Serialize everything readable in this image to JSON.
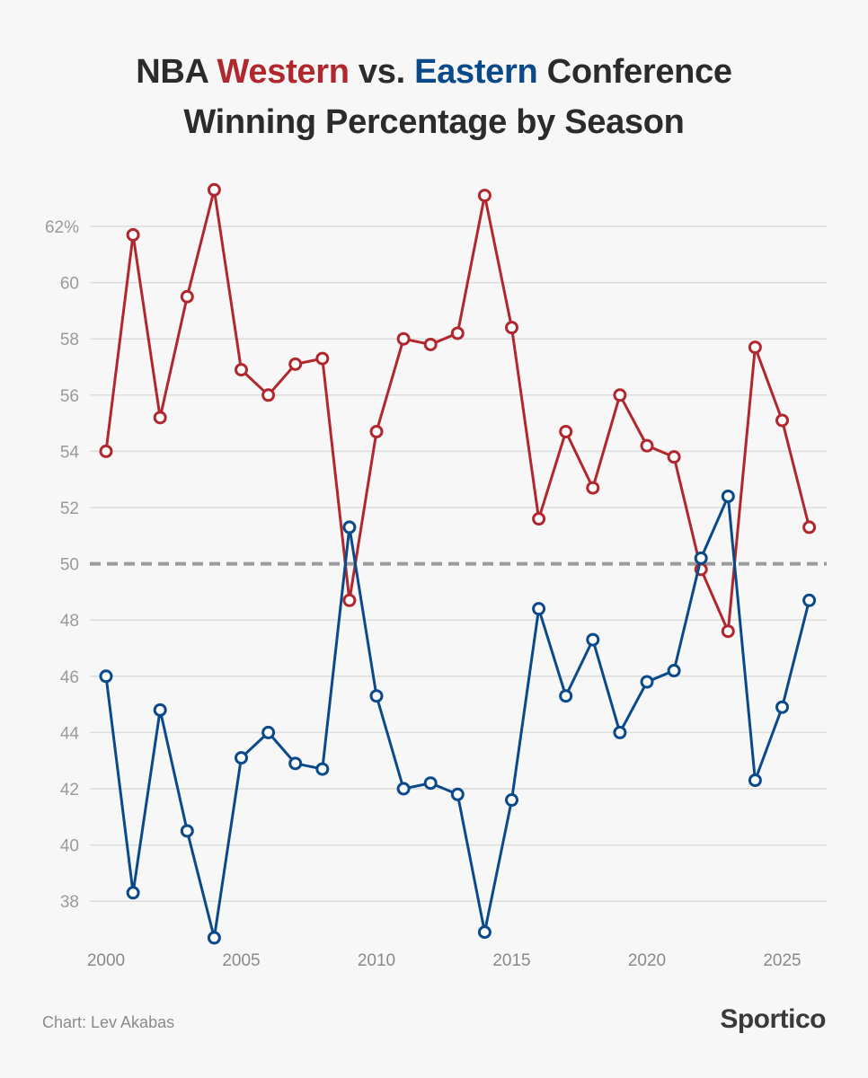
{
  "chart_data": {
    "type": "line",
    "title_parts": [
      {
        "text": "NBA ",
        "role": "plain"
      },
      {
        "text": "Western",
        "role": "west"
      },
      {
        "text": " vs. ",
        "role": "plain"
      },
      {
        "text": "Eastern",
        "role": "east"
      },
      {
        "text": " Conference",
        "role": "plain"
      }
    ],
    "title_line2": "Winning Percentage by Season",
    "title": "NBA Western vs. Eastern Conference Winning Percentage by Season",
    "xlabel": "",
    "ylabel": "",
    "x": [
      2000,
      2001,
      2002,
      2003,
      2004,
      2005,
      2006,
      2007,
      2008,
      2009,
      2010,
      2011,
      2012,
      2013,
      2014,
      2015,
      2016,
      2017,
      2018,
      2019,
      2020,
      2021,
      2022,
      2023,
      2024,
      2025,
      2026
    ],
    "series": [
      {
        "name": "Western",
        "color": "#b0282e",
        "values": [
          54.0,
          61.7,
          55.2,
          59.5,
          63.3,
          56.9,
          56.0,
          57.1,
          57.3,
          48.7,
          54.7,
          58.0,
          57.8,
          58.2,
          63.1,
          58.4,
          51.6,
          54.7,
          52.7,
          56.0,
          54.2,
          53.8,
          49.8,
          47.6,
          57.7,
          55.1,
          51.3
        ]
      },
      {
        "name": "Eastern",
        "color": "#0b4a8a",
        "values": [
          46.0,
          38.3,
          44.8,
          40.5,
          36.7,
          43.1,
          44.0,
          42.9,
          42.7,
          51.3,
          45.3,
          42.0,
          42.2,
          41.8,
          36.9,
          41.6,
          48.4,
          45.3,
          47.3,
          44.0,
          45.8,
          46.2,
          50.2,
          52.4,
          42.3,
          44.9,
          48.7
        ]
      }
    ],
    "xticks": [
      2000,
      2005,
      2010,
      2015,
      2020,
      2025
    ],
    "xtick_labels": [
      "2000",
      "2005",
      "2010",
      "2015",
      "2020",
      "2025"
    ],
    "yticks": [
      38,
      40,
      42,
      44,
      46,
      48,
      50,
      52,
      54,
      56,
      58,
      60,
      62
    ],
    "ytick_labels": [
      "38",
      "40",
      "42",
      "44",
      "46",
      "48",
      "50",
      "52",
      "54",
      "56",
      "58",
      "60",
      "62%"
    ],
    "xlim": [
      2000,
      2026
    ],
    "ylim": [
      36.5,
      63.5
    ],
    "reference_line": {
      "value": 50,
      "style": "dashed",
      "color": "#9b9b9b"
    },
    "grid": true,
    "legend": "none (series colors encoded in title)"
  },
  "footer": {
    "credit": "Chart: Lev Akabas",
    "logo": "Sportico"
  }
}
